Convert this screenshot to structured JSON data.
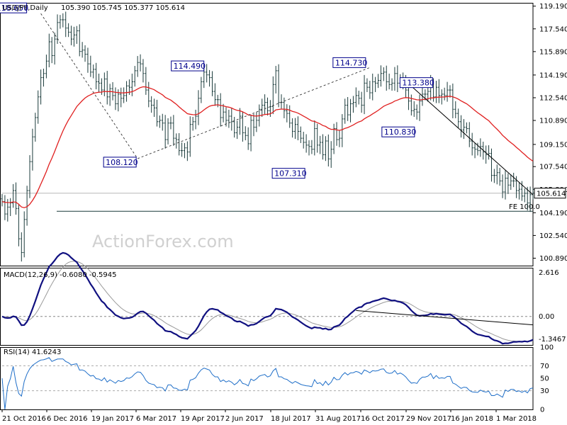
{
  "chart_data": {
    "type": "candlestick",
    "symbol": "USDJPY,Daily",
    "ohlc_text": "105.390 105.745 105.377 105.614",
    "watermark": "ActionForex.com",
    "x_tick_labels": [
      "21 Oct 2016",
      "6 Dec 2016",
      "19 Jan 2017",
      "6 Mar 2017",
      "19 Apr 2017",
      "2 Jun 2017",
      "18 Jul 2017",
      "31 Aug 2017",
      "16 Oct 2017",
      "29 Nov 2017",
      "16 Jan 2018",
      "1 Mar 2018"
    ],
    "price_panel": {
      "ylim": [
        100.35,
        119.43
      ],
      "y_tick_labels": [
        "119.190",
        "117.540",
        "115.890",
        "114.190",
        "112.540",
        "110.890",
        "109.150",
        "107.540",
        "105.890",
        "104.190",
        "102.540",
        "100.890"
      ],
      "y_tick_values": [
        119.19,
        117.54,
        115.89,
        114.19,
        112.54,
        110.89,
        109.15,
        107.54,
        105.89,
        104.19,
        102.54,
        100.89
      ],
      "last_price": "105.614",
      "annotations": [
        {
          "text": "118.650",
          "x_index": 14,
          "price": 118.65
        },
        {
          "text": "108.120",
          "x_index": 49,
          "price": 108.12
        },
        {
          "text": "114.490",
          "x_index": 74,
          "price": 114.49
        },
        {
          "text": "107.310",
          "x_index": 110,
          "price": 107.31
        },
        {
          "text": "114.730",
          "x_index": 133,
          "price": 114.73
        },
        {
          "text": "110.830",
          "x_index": 143,
          "price": 110.83
        },
        {
          "text": "113.380",
          "x_index": 148,
          "price": 113.38
        }
      ],
      "fe_label": "FE 100.0",
      "fe_level": 104.3,
      "closes": [
        105.0,
        104.1,
        104.6,
        104.9,
        105.8,
        104.5,
        102.3,
        101.3,
        103.7,
        105.8,
        107.9,
        109.7,
        111.1,
        112.6,
        114.0,
        114.3,
        115.2,
        116.6,
        115.6,
        116.8,
        118.0,
        118.2,
        118.2,
        117.6,
        117.3,
        116.8,
        117.1,
        117.4,
        115.9,
        116.0,
        115.7,
        115.0,
        114.4,
        114.6,
        113.7,
        113.6,
        113.1,
        113.9,
        112.6,
        113.2,
        112.7,
        112.1,
        112.8,
        112.5,
        112.7,
        113.4,
        113.3,
        113.7,
        114.5,
        115.1,
        115.0,
        114.3,
        113.1,
        112.3,
        112.0,
        111.8,
        110.8,
        110.9,
        110.7,
        109.5,
        110.7,
        110.7,
        109.6,
        109.5,
        108.7,
        108.7,
        108.9,
        108.6,
        110.6,
        110.8,
        111.2,
        112.5,
        113.7,
        114.4,
        114.2,
        114.0,
        113.0,
        112.4,
        112.4,
        111.1,
        111.5,
        110.9,
        111.2,
        110.8,
        110.0,
        110.4,
        111.2,
        110.0,
        109.8,
        109.2,
        110.9,
        110.4,
        110.9,
        111.7,
        112.0,
        112.2,
        111.6,
        111.9,
        113.5,
        114.5,
        112.2,
        112.2,
        111.6,
        111.4,
        110.7,
        110.1,
        110.6,
        110.1,
        109.6,
        109.3,
        109.1,
        109.0,
        108.8,
        110.3,
        109.1,
        109.3,
        108.4,
        109.4,
        108.1,
        108.8,
        110.3,
        109.5,
        109.6,
        111.0,
        112.0,
        111.3,
        112.1,
        112.2,
        112.7,
        112.5,
        112.0,
        113.6,
        113.3,
        112.9,
        113.7,
        113.6,
        113.8,
        114.3,
        114.4,
        113.7,
        113.5,
        113.6,
        114.3,
        113.6,
        113.9,
        113.6,
        113.1,
        112.3,
        111.6,
        111.7,
        111.5,
        112.3,
        112.8,
        112.8,
        113.0,
        113.6,
        112.6,
        113.3,
        112.7,
        112.8,
        112.7,
        113.1,
        113.1,
        111.7,
        111.4,
        110.8,
        110.2,
        110.4,
        110.3,
        109.4,
        108.9,
        108.8,
        108.7,
        109.0,
        108.6,
        108.4,
        108.5,
        106.9,
        106.9,
        107.1,
        106.5,
        105.7,
        106.7,
        106.2,
        106.5,
        106.5,
        105.8,
        105.9,
        105.4,
        105.6,
        104.9,
        105.5,
        105.61
      ]
    },
    "macd_panel": {
      "label": "MACD(12,26,9) -0.6080 -0.5945",
      "ylim": [
        -1.7,
        2.9
      ],
      "y_tick_labels": [
        "2.616",
        "0.00",
        "-1.3467"
      ],
      "y_tick_values": [
        2.616,
        0.0,
        -1.3467
      ]
    },
    "rsi_panel": {
      "label": "RSI(14) 41.6243",
      "ylim": [
        0,
        100
      ],
      "y_tick_labels": [
        "100",
        "70",
        "50",
        "30",
        "0"
      ],
      "y_tick_values": [
        100,
        70,
        50,
        30,
        0
      ]
    }
  }
}
